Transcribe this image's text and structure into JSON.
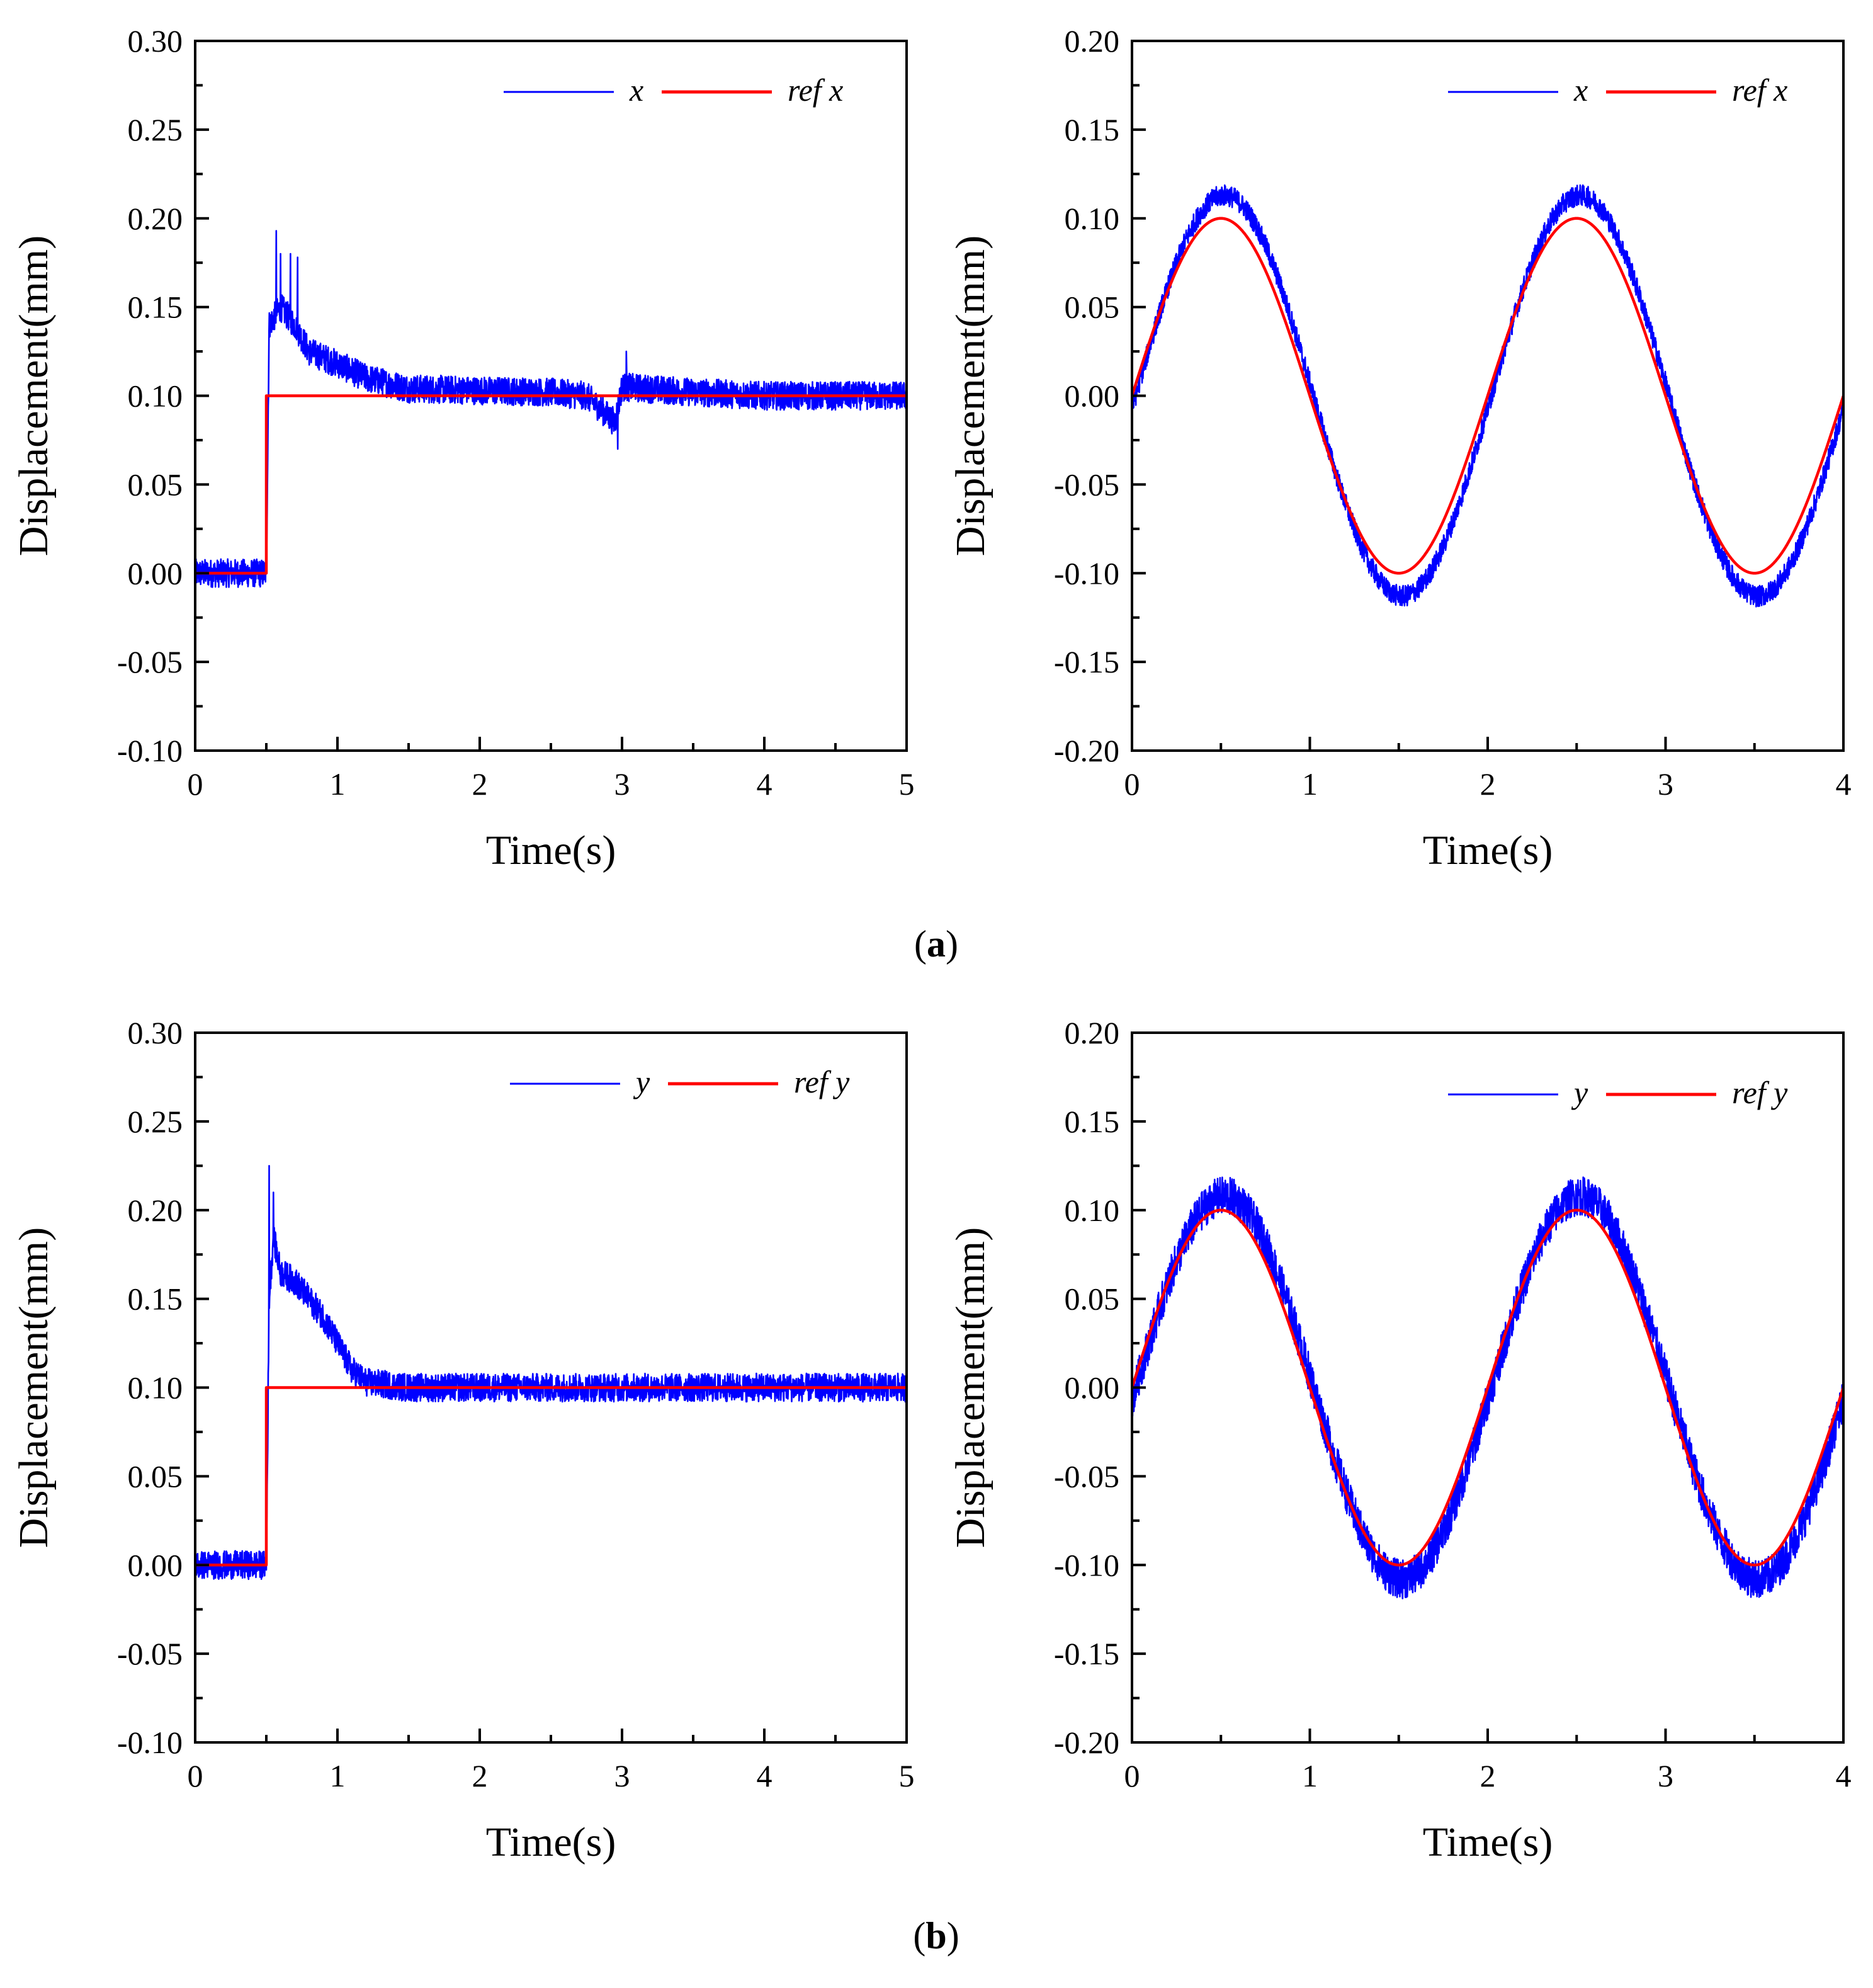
{
  "figure": {
    "caption_a": "a",
    "caption_b": "b"
  },
  "colors": {
    "measured": "#0000ff",
    "reference": "#ff0000",
    "axis": "#000000"
  },
  "chart_data": [
    {
      "id": "step-x",
      "type": "line",
      "panel": "a",
      "position": "left",
      "title": "",
      "xlabel": "Time(s)",
      "ylabel": "Displacement(mm)",
      "xlim": [
        0,
        5
      ],
      "ylim": [
        -0.1,
        0.3
      ],
      "xticks": [
        "0",
        "1",
        "2",
        "3",
        "4",
        "5"
      ],
      "yticks": [
        "0.30",
        "0.25",
        "0.20",
        "0.15",
        "0.10",
        "0.05",
        "0.00",
        "-0.05",
        "-0.10"
      ],
      "legend": {
        "placement": "top-right",
        "entries": [
          "x",
          "ref x"
        ]
      },
      "series": [
        {
          "name": "x",
          "color": "#0000ff",
          "noise_amplitude": 0.008,
          "points": [
            [
              0,
              0.0
            ],
            [
              0.5,
              0.0
            ],
            [
              0.52,
              0.14
            ],
            [
              0.6,
              0.15
            ],
            [
              0.7,
              0.14
            ],
            [
              0.8,
              0.125
            ],
            [
              1.0,
              0.118
            ],
            [
              1.2,
              0.11
            ],
            [
              1.5,
              0.104
            ],
            [
              2.0,
              0.103
            ],
            [
              2.5,
              0.102
            ],
            [
              2.75,
              0.1
            ],
            [
              2.95,
              0.085
            ],
            [
              3.0,
              0.105
            ],
            [
              3.5,
              0.102
            ],
            [
              4.0,
              0.1
            ],
            [
              5.0,
              0.1
            ]
          ],
          "spikes": [
            [
              0.57,
              0.193
            ],
            [
              0.6,
              0.18
            ],
            [
              0.67,
              0.18
            ],
            [
              0.72,
              0.178
            ],
            [
              2.97,
              0.07
            ],
            [
              3.03,
              0.125
            ]
          ]
        },
        {
          "name": "ref x",
          "color": "#ff0000",
          "points": [
            [
              0,
              0
            ],
            [
              0.5,
              0
            ],
            [
              0.5,
              0.1
            ],
            [
              5,
              0.1
            ]
          ]
        }
      ]
    },
    {
      "id": "sine-x",
      "type": "line",
      "panel": "a",
      "position": "right",
      "title": "",
      "xlabel": "Time(s)",
      "ylabel": "Displacement(mm)",
      "xlim": [
        0,
        4
      ],
      "ylim": [
        -0.2,
        0.2
      ],
      "xticks": [
        "0",
        "1",
        "2",
        "3",
        "4"
      ],
      "yticks": [
        "0.20",
        "0.15",
        "0.10",
        "0.05",
        "0.00",
        "-0.05",
        "-0.10",
        "-0.15",
        "-0.20"
      ],
      "legend": {
        "placement": "top-right",
        "entries": [
          "x",
          "ref x"
        ]
      },
      "series": [
        {
          "name": "x",
          "color": "#0000ff",
          "amplitude": 0.113,
          "period": 2,
          "phase_lag": 0.02,
          "noise_amplitude": 0.006
        },
        {
          "name": "ref x",
          "color": "#ff0000",
          "amplitude": 0.1,
          "period": 2
        }
      ]
    },
    {
      "id": "step-y",
      "type": "line",
      "panel": "b",
      "position": "left",
      "title": "",
      "xlabel": "Time(s)",
      "ylabel": "Displacement(mm)",
      "xlim": [
        0,
        5
      ],
      "ylim": [
        -0.1,
        0.3
      ],
      "xticks": [
        "0",
        "1",
        "2",
        "3",
        "4",
        "5"
      ],
      "yticks": [
        "0.30",
        "0.25",
        "0.20",
        "0.15",
        "0.10",
        "0.05",
        "0.00",
        "-0.05",
        "-0.10"
      ],
      "legend": {
        "placement": "top-right",
        "entries": [
          "y",
          "ref y"
        ]
      },
      "series": [
        {
          "name": "y",
          "color": "#0000ff",
          "noise_amplitude": 0.008,
          "points": [
            [
              0,
              0.0
            ],
            [
              0.5,
              0.0
            ],
            [
              0.52,
              0.15
            ],
            [
              0.55,
              0.185
            ],
            [
              0.6,
              0.165
            ],
            [
              0.7,
              0.16
            ],
            [
              0.8,
              0.15
            ],
            [
              0.9,
              0.14
            ],
            [
              1.0,
              0.125
            ],
            [
              1.1,
              0.11
            ],
            [
              1.2,
              0.103
            ],
            [
              1.5,
              0.1
            ],
            [
              2.0,
              0.1
            ],
            [
              5.0,
              0.1
            ]
          ],
          "spikes": [
            [
              0.52,
              0.225
            ],
            [
              0.55,
              0.21
            ]
          ]
        },
        {
          "name": "ref y",
          "color": "#ff0000",
          "points": [
            [
              0,
              0
            ],
            [
              0.5,
              0
            ],
            [
              0.5,
              0.1
            ],
            [
              5,
              0.1
            ]
          ]
        }
      ]
    },
    {
      "id": "sine-y",
      "type": "line",
      "panel": "b",
      "position": "right",
      "title": "",
      "xlabel": "Time(s)",
      "ylabel": "Displacement(mm)",
      "xlim": [
        0,
        4
      ],
      "ylim": [
        -0.2,
        0.2
      ],
      "xticks": [
        "0",
        "1",
        "2",
        "3",
        "4"
      ],
      "yticks": [
        "0.20",
        "0.15",
        "0.10",
        "0.05",
        "0.00",
        "-0.05",
        "-0.10",
        "-0.15",
        "-0.20"
      ],
      "legend": {
        "placement": "top-right",
        "entries": [
          "y",
          "ref y"
        ]
      },
      "series": [
        {
          "name": "y",
          "color": "#0000ff",
          "amplitude": 0.108,
          "period": 2,
          "phase_lag": 0.02,
          "noise_amplitude": 0.011
        },
        {
          "name": "ref y",
          "color": "#ff0000",
          "amplitude": 0.1,
          "period": 2
        }
      ]
    }
  ]
}
